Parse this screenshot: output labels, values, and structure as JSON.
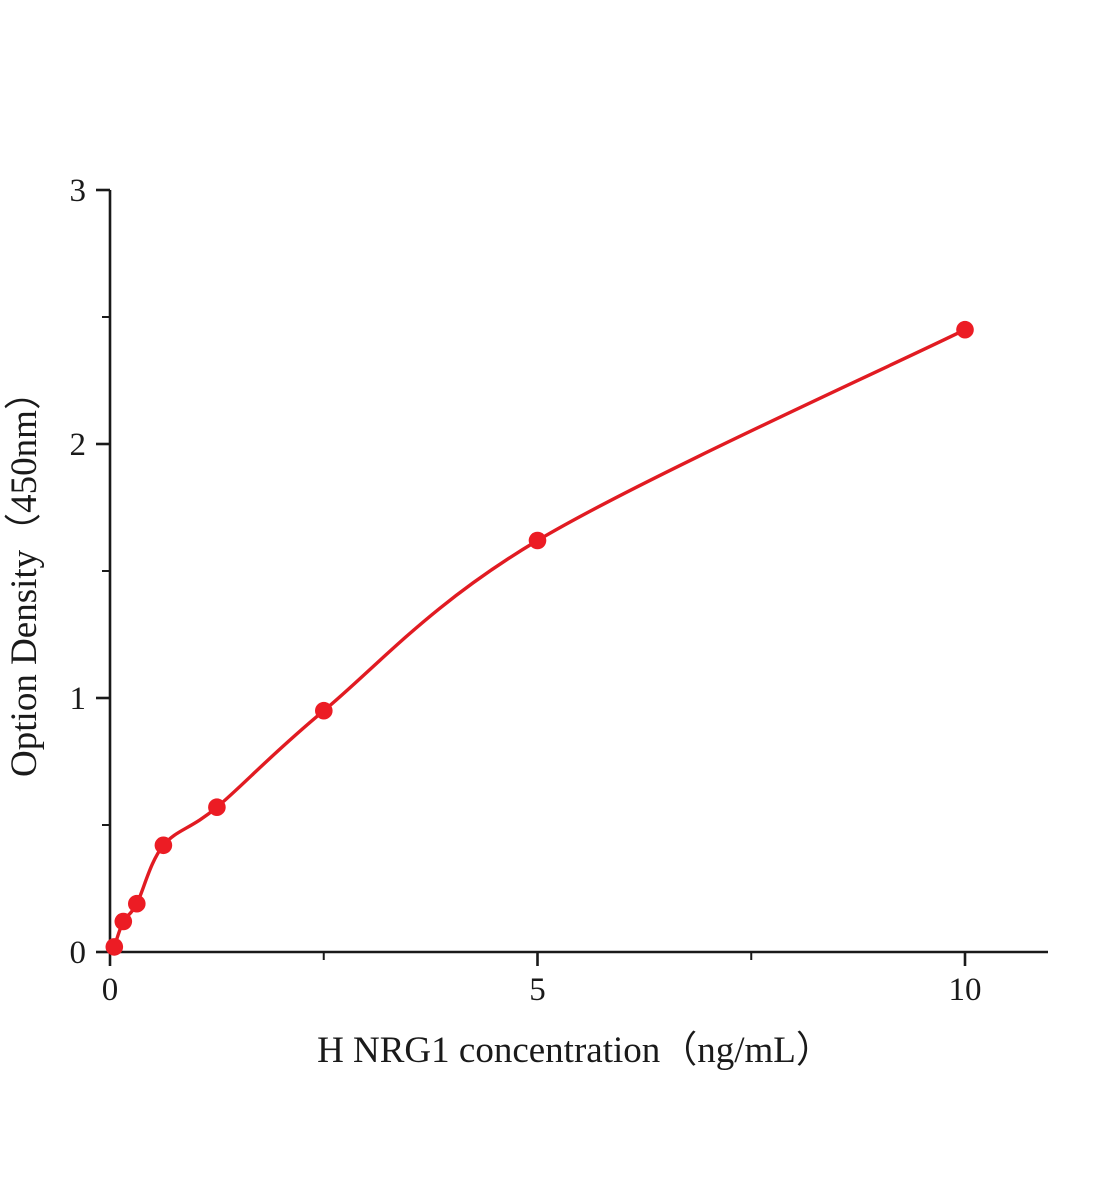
{
  "chart_data": {
    "type": "scatter",
    "title": "",
    "xlabel": "H NRG1 concentration（ng/mL）",
    "ylabel": "Option Density（450nm）",
    "x": [
      0.05,
      0.156,
      0.313,
      0.625,
      1.25,
      2.5,
      5,
      10
    ],
    "y": [
      0.02,
      0.12,
      0.19,
      0.42,
      0.57,
      0.95,
      1.62,
      2.45
    ],
    "curve": "smooth-through-points",
    "xlim": [
      0,
      10.97
    ],
    "ylim": [
      0,
      3
    ],
    "xticks": [
      0,
      5,
      10
    ],
    "yticks": [
      0,
      1,
      2,
      3
    ],
    "xtick_labels": [
      "0",
      "5",
      "10"
    ],
    "ytick_labels": [
      "0",
      "1",
      "2",
      "3"
    ],
    "x_minor_ticks": [
      2.5,
      7.5
    ],
    "y_minor_ticks": [
      0.5,
      1.5,
      2.5
    ],
    "grid": "off",
    "legend": "none",
    "point_color": "#ec1c24",
    "line_color": "#e11b22",
    "axis_color": "#1a1a1a"
  }
}
